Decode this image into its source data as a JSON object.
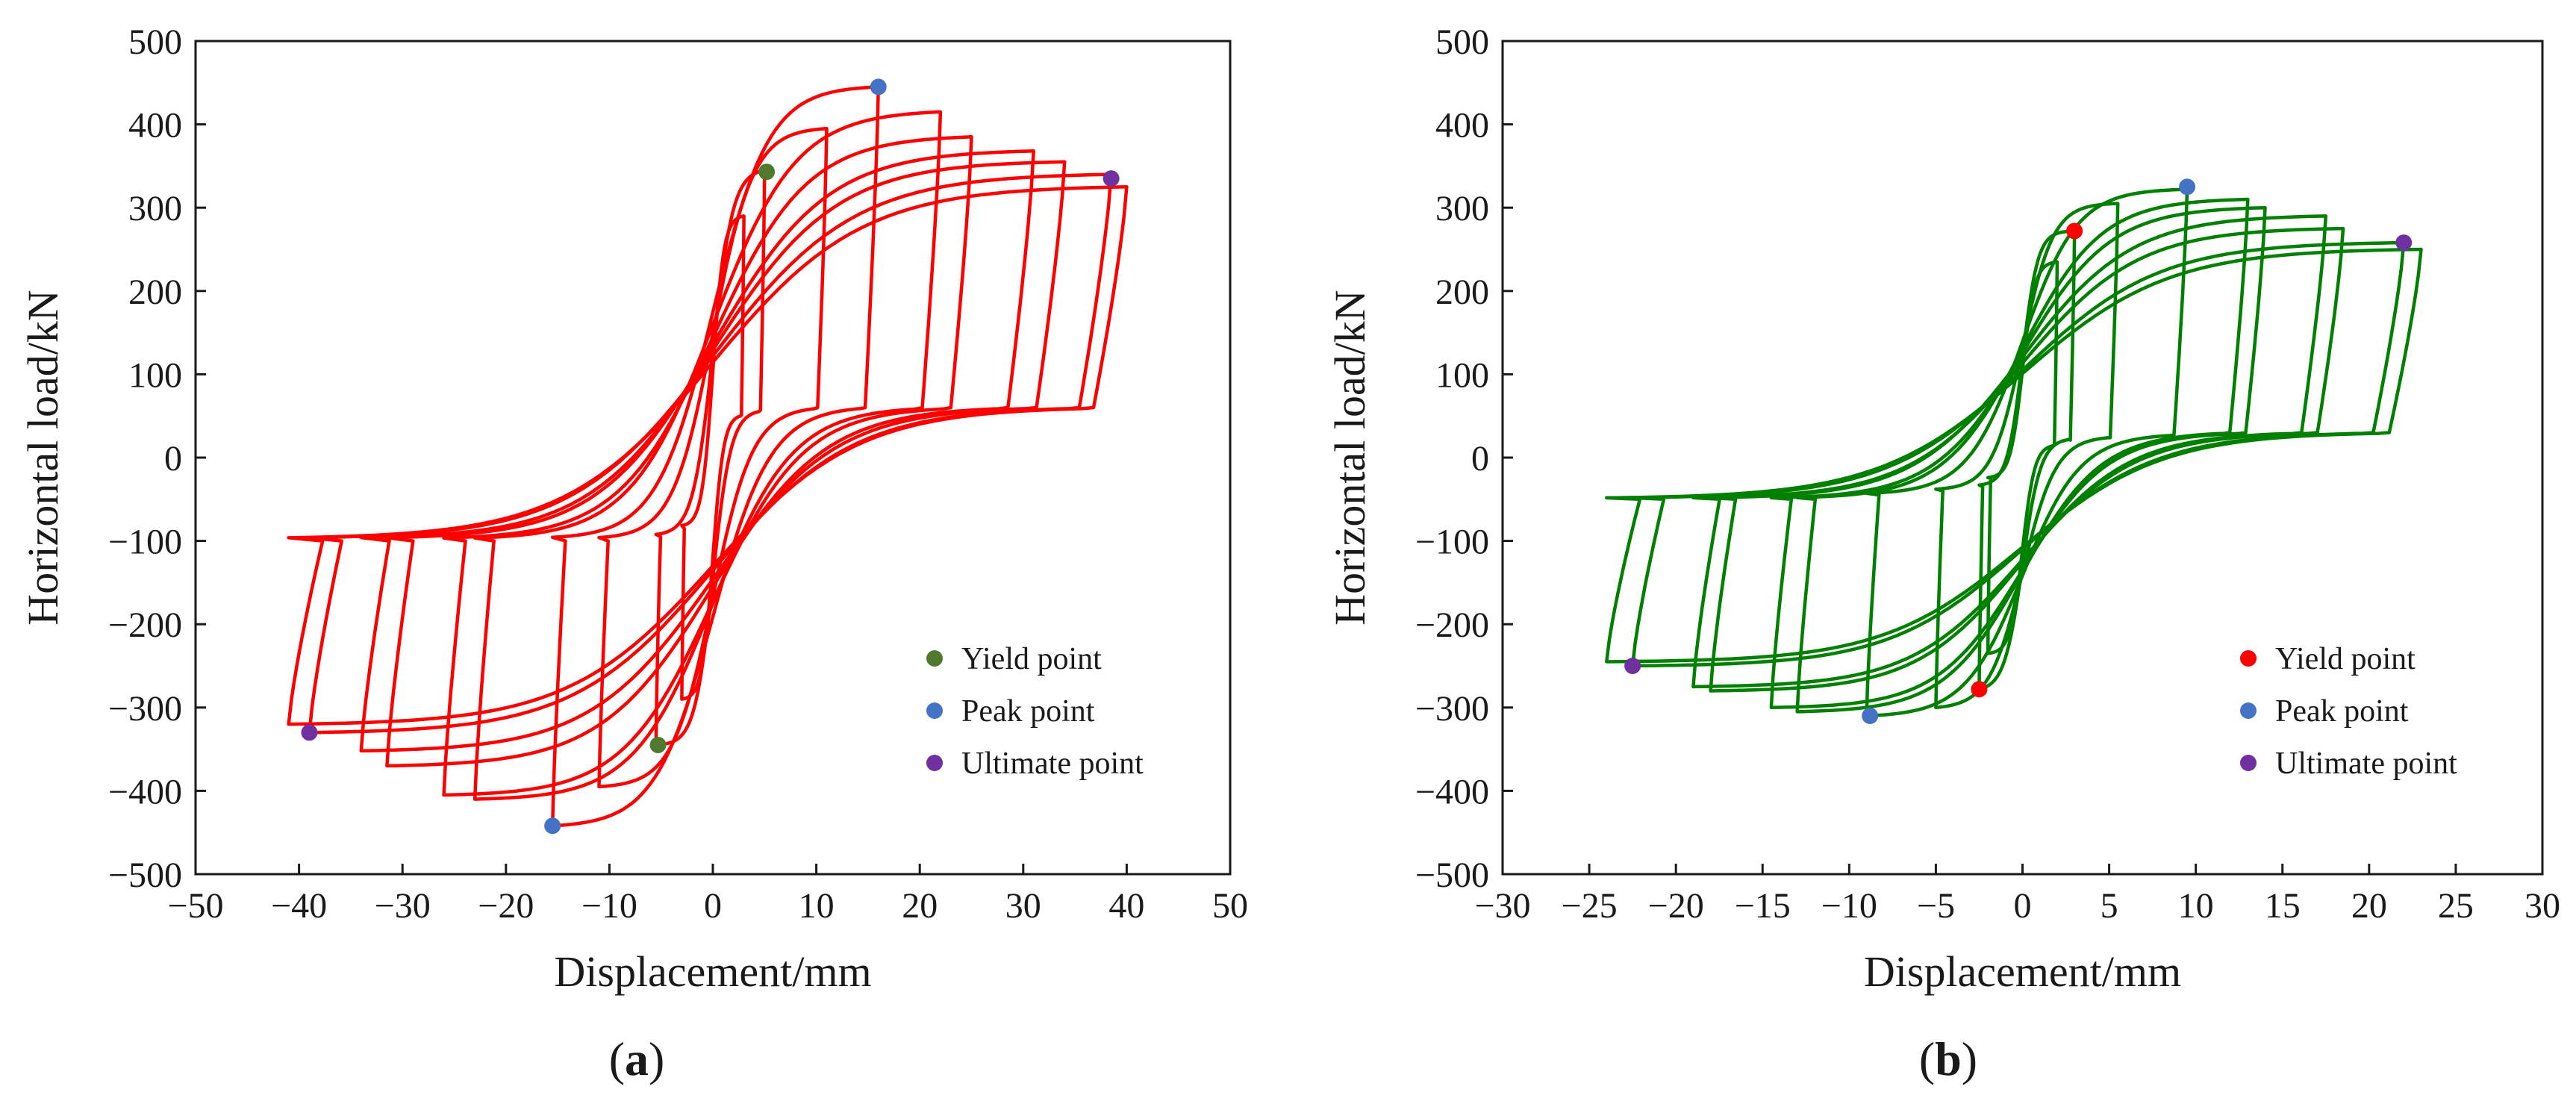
{
  "figure": {
    "panel_labels": [
      "(a)",
      "(b)"
    ]
  },
  "chart_data": [
    {
      "type": "line",
      "panel": "a",
      "title": "",
      "xlabel": "Displacement/mm",
      "ylabel": "Horizontal load/kN",
      "xlim": [
        -50,
        50
      ],
      "ylim": [
        -500,
        500
      ],
      "xticks": [
        -50,
        -40,
        -30,
        -20,
        -10,
        0,
        10,
        20,
        30,
        40,
        50
      ],
      "yticks": [
        -500,
        -400,
        -300,
        -200,
        -100,
        0,
        100,
        200,
        300,
        400,
        500
      ],
      "xtick_labels": [
        "−50",
        "−40",
        "−30",
        "−20",
        "−10",
        "0",
        "10",
        "20",
        "30",
        "40",
        "50"
      ],
      "ytick_labels": [
        "−500",
        "−400",
        "−300",
        "−200",
        "−100",
        "0",
        "100",
        "200",
        "300",
        "400",
        "500"
      ],
      "grid": false,
      "legend_position": "bottom-right",
      "curve_color": "#ff0000",
      "hysteresis_cycles": [
        {
          "dmax": 3.0,
          "pmax": 290,
          "dmin": -3.0,
          "pmin": -290,
          "ri": 85,
          "sk": 105
        },
        {
          "dmax": 5.0,
          "pmax": 345,
          "dmin": -5.5,
          "pmin": -345,
          "ri": 95,
          "sk": 100
        },
        {
          "dmax": 11.0,
          "pmax": 395,
          "dmin": -11.0,
          "pmin": -395,
          "ri": 100,
          "sk": 60
        },
        {
          "dmax": 16.0,
          "pmax": 445,
          "dmin": -15.5,
          "pmin": -442,
          "ri": 100,
          "sk": 42
        },
        {
          "dmax": 22.0,
          "pmax": 415,
          "dmin": -23.0,
          "pmin": -410,
          "ri": 100,
          "sk": 30
        },
        {
          "dmax": 25.0,
          "pmax": 385,
          "dmin": -26.0,
          "pmin": -405,
          "ri": 100,
          "sk": 25
        },
        {
          "dmax": 31.0,
          "pmax": 368,
          "dmin": -31.5,
          "pmin": -370,
          "ri": 100,
          "sk": 18
        },
        {
          "dmax": 34.0,
          "pmax": 355,
          "dmin": -34.0,
          "pmin": -352,
          "ri": 100,
          "sk": 15
        },
        {
          "dmax": 38.5,
          "pmax": 340,
          "dmin": -39.0,
          "pmin": -330,
          "ri": 100,
          "sk": 12
        },
        {
          "dmax": 40.0,
          "pmax": 325,
          "dmin": -41.0,
          "pmin": -320,
          "ri": 100,
          "sk": 11
        }
      ],
      "points": [
        {
          "label": "Yield point",
          "color": "#4f7a2e",
          "coords": [
            [
              5.2,
              343
            ],
            [
              -5.3,
              -345
            ]
          ]
        },
        {
          "label": "Peak point",
          "color": "#4472c4",
          "coords": [
            [
              16.0,
              445
            ],
            [
              -15.5,
              -442
            ]
          ]
        },
        {
          "label": "Ultimate point",
          "color": "#7030a0",
          "coords": [
            [
              38.5,
              335
            ],
            [
              -39.0,
              -330
            ]
          ]
        }
      ]
    },
    {
      "type": "line",
      "panel": "b",
      "title": "",
      "xlabel": "Displacement/mm",
      "ylabel": "Horizontal load/kN",
      "xlim": [
        -30,
        30
      ],
      "ylim": [
        -500,
        500
      ],
      "xticks": [
        -30,
        -25,
        -20,
        -15,
        -10,
        -5,
        0,
        5,
        10,
        15,
        20,
        25,
        30
      ],
      "yticks": [
        -500,
        -400,
        -300,
        -200,
        -100,
        0,
        100,
        200,
        300,
        400,
        500
      ],
      "xtick_labels": [
        "−30",
        "−25",
        "−20",
        "−15",
        "−10",
        "−5",
        "0",
        "5",
        "10",
        "15",
        "20",
        "25",
        "30"
      ],
      "ytick_labels": [
        "−500",
        "−400",
        "−300",
        "−200",
        "−100",
        "0",
        "100",
        "200",
        "300",
        "400",
        "500"
      ],
      "grid": false,
      "legend_position": "bottom-right",
      "curve_color": "#008000",
      "hysteresis_cycles": [
        {
          "dmax": 2.0,
          "pmax": 235,
          "dmin": -2.0,
          "pmin": -235,
          "ri": 25,
          "sk": 100
        },
        {
          "dmax": 3.0,
          "pmax": 272,
          "dmin": -2.5,
          "pmin": -278,
          "ri": 35,
          "sk": 90
        },
        {
          "dmax": 5.5,
          "pmax": 305,
          "dmin": -5.0,
          "pmin": -300,
          "ri": 40,
          "sk": 60
        },
        {
          "dmax": 9.5,
          "pmax": 322,
          "dmin": -9.0,
          "pmin": -310,
          "ri": 45,
          "sk": 40
        },
        {
          "dmax": 13.0,
          "pmax": 310,
          "dmin": -13.0,
          "pmin": -305,
          "ri": 50,
          "sk": 28
        },
        {
          "dmax": 14.0,
          "pmax": 300,
          "dmin": -14.5,
          "pmin": -300,
          "ri": 50,
          "sk": 25
        },
        {
          "dmax": 17.5,
          "pmax": 290,
          "dmin": -18.0,
          "pmin": -280,
          "ri": 50,
          "sk": 20
        },
        {
          "dmax": 18.5,
          "pmax": 275,
          "dmin": -19.0,
          "pmin": -275,
          "ri": 50,
          "sk": 18
        },
        {
          "dmax": 22.0,
          "pmax": 258,
          "dmin": -22.5,
          "pmin": -250,
          "ri": 50,
          "sk": 15
        },
        {
          "dmax": 23.0,
          "pmax": 250,
          "dmin": -24.0,
          "pmin": -245,
          "ri": 50,
          "sk": 14
        }
      ],
      "points": [
        {
          "label": "Yield point",
          "color": "#ff0000",
          "coords": [
            [
              3.0,
              272
            ],
            [
              -2.5,
              -278
            ]
          ]
        },
        {
          "label": "Peak point",
          "color": "#4472c4",
          "coords": [
            [
              9.5,
              325
            ],
            [
              -8.8,
              -310
            ]
          ]
        },
        {
          "label": "Ultimate point",
          "color": "#7030a0",
          "coords": [
            [
              22.0,
              258
            ],
            [
              -22.5,
              -250
            ]
          ]
        }
      ]
    }
  ]
}
